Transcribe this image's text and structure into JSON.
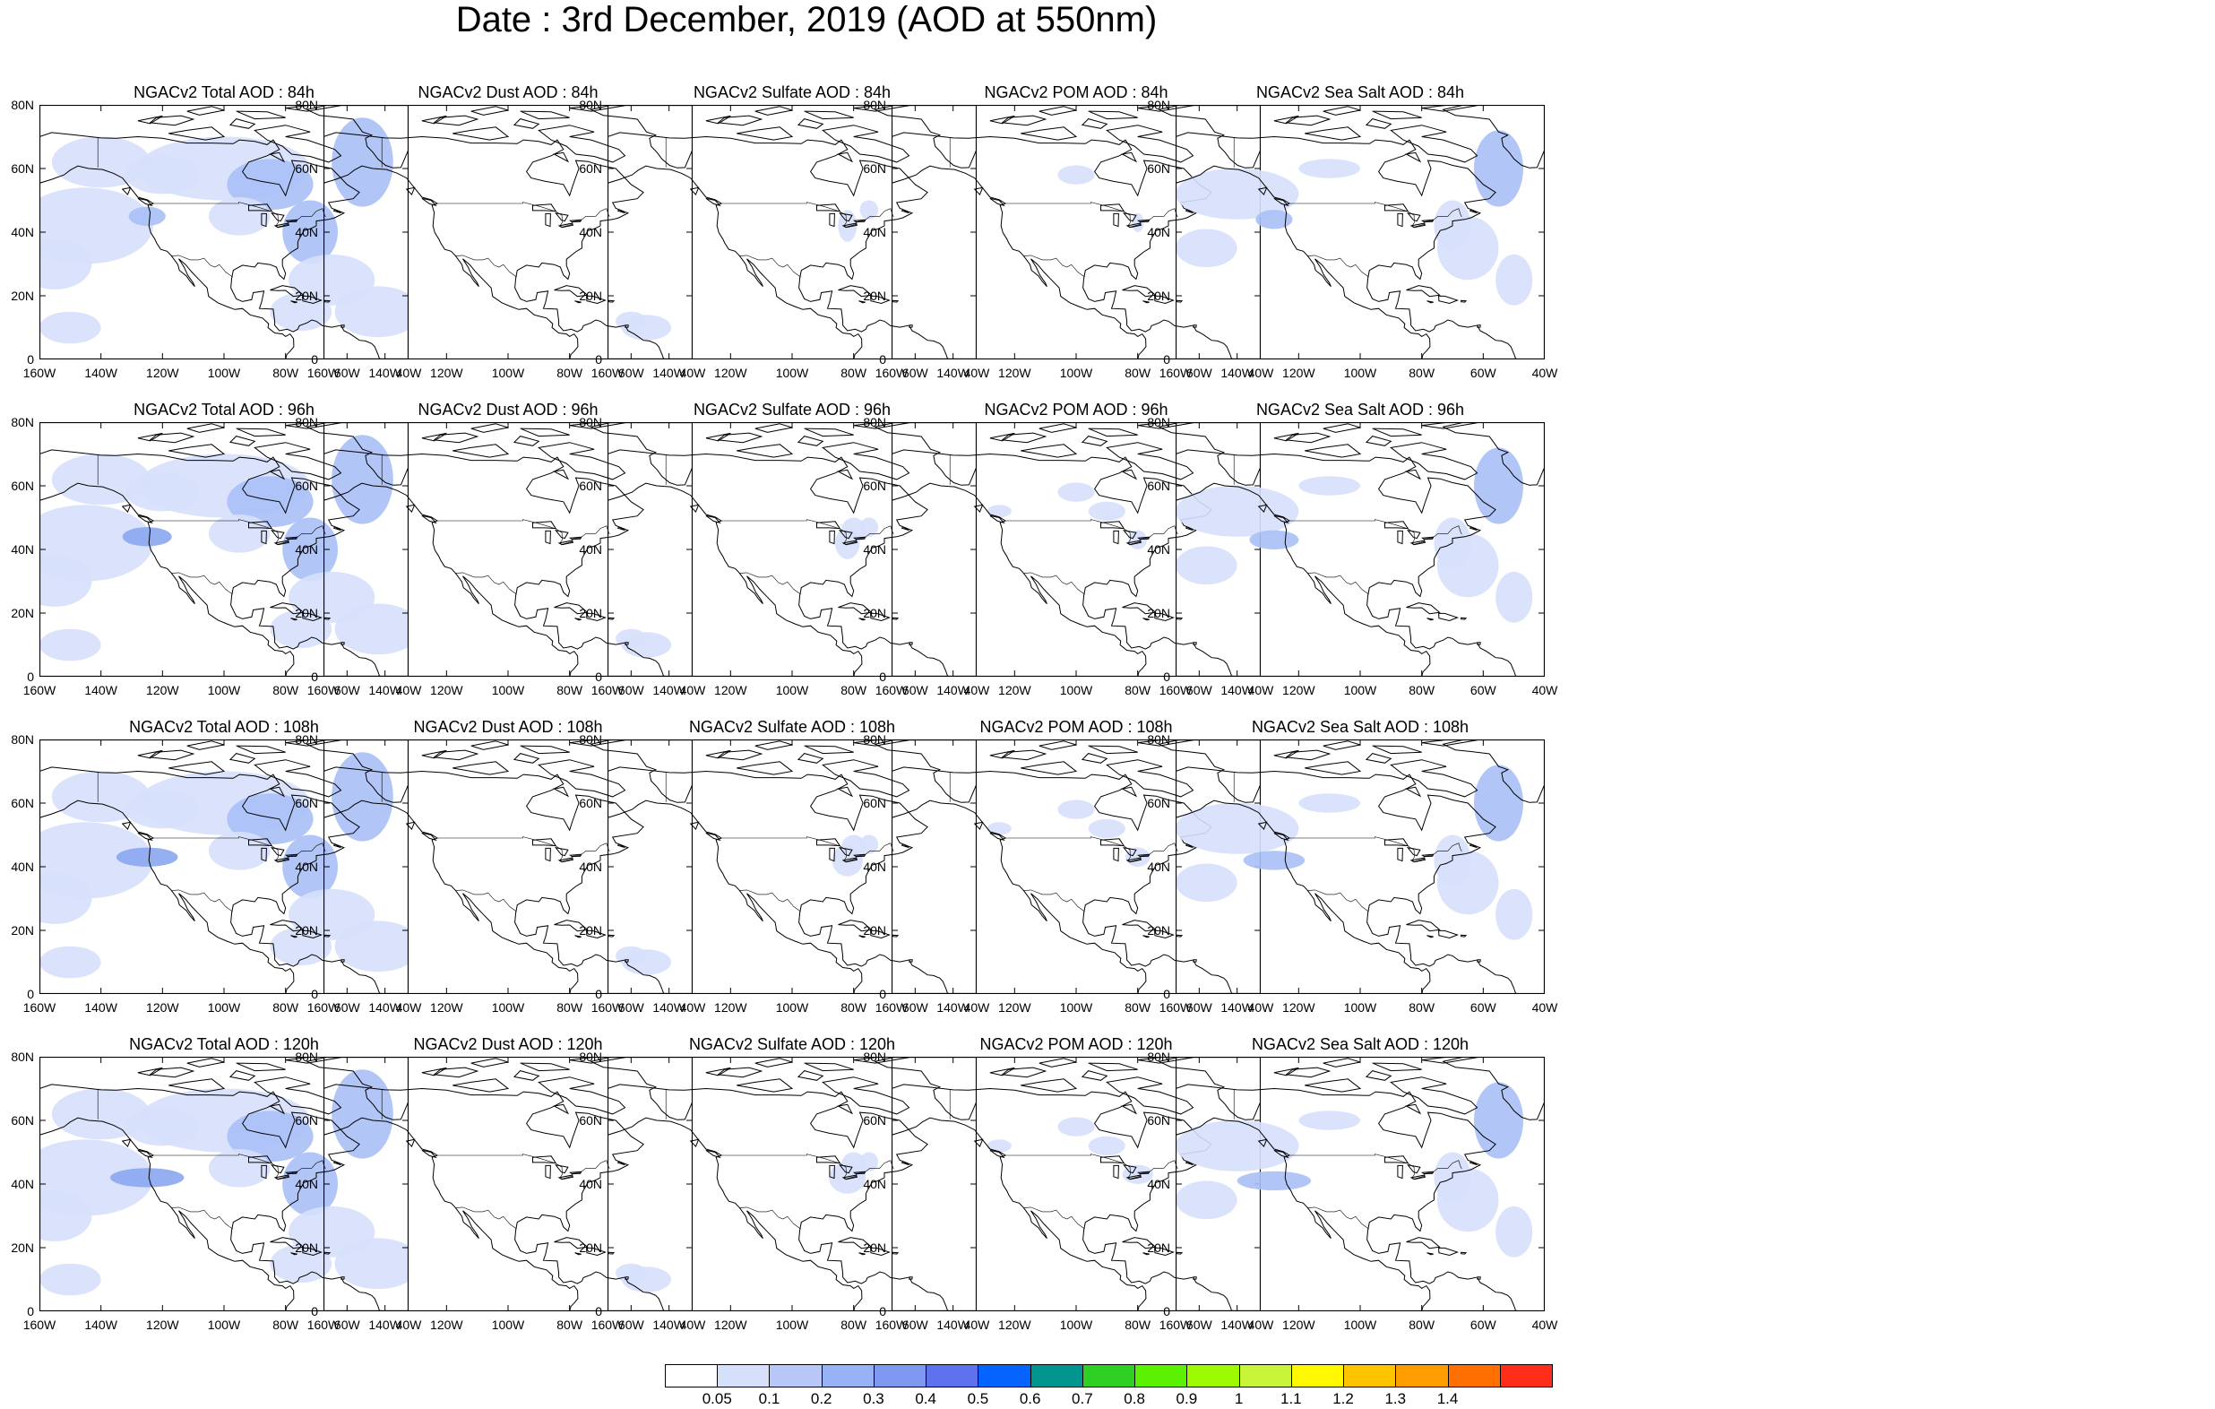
{
  "title": "Date : 3rd December, 2019 (AOD at 550nm)",
  "lat_ticks": [
    "80N",
    "60N",
    "40N",
    "20N",
    "0"
  ],
  "lon_ticks": [
    "160W",
    "140W",
    "120W",
    "100W",
    "80W",
    "60W",
    "40W"
  ],
  "colors": {
    "land_outline": "#000000",
    "ocean_low": "#d6e0fb",
    "mid": "#a9bff6",
    "high": "#8aa6f0"
  },
  "panels": [
    [
      {
        "title": "NGACv2 Total AOD : 84h",
        "species": "total"
      },
      {
        "title": "NGACv2 Dust AOD : 84h",
        "species": "dust"
      },
      {
        "title": "NGACv2 Sulfate AOD : 84h",
        "species": "sulfate"
      },
      {
        "title": "NGACv2 POM AOD : 84h",
        "species": "pom"
      },
      {
        "title": "NGACv2 Sea Salt AOD : 84h",
        "species": "seasalt"
      }
    ],
    [
      {
        "title": "NGACv2 Total AOD : 96h",
        "species": "total"
      },
      {
        "title": "NGACv2 Dust AOD : 96h",
        "species": "dust"
      },
      {
        "title": "NGACv2 Sulfate AOD : 96h",
        "species": "sulfate"
      },
      {
        "title": "NGACv2 POM AOD : 96h",
        "species": "pom"
      },
      {
        "title": "NGACv2 Sea Salt AOD : 96h",
        "species": "seasalt"
      }
    ],
    [
      {
        "title": "NGACv2 Total AOD : 108h",
        "species": "total"
      },
      {
        "title": "NGACv2 Dust AOD : 108h",
        "species": "dust"
      },
      {
        "title": "NGACv2 Sulfate AOD : 108h",
        "species": "sulfate"
      },
      {
        "title": "NGACv2 POM AOD : 108h",
        "species": "pom"
      },
      {
        "title": "NGACv2 Sea Salt AOD : 108h",
        "species": "seasalt"
      }
    ],
    [
      {
        "title": "NGACv2 Total AOD : 120h",
        "species": "total"
      },
      {
        "title": "NGACv2 Dust AOD : 120h",
        "species": "dust"
      },
      {
        "title": "NGACv2 Sulfate AOD : 120h",
        "species": "sulfate"
      },
      {
        "title": "NGACv2 POM AOD : 120h",
        "species": "pom"
      },
      {
        "title": "NGACv2 Sea Salt  AOD : 120h",
        "species": "seasalt"
      }
    ]
  ],
  "colorbar": {
    "labels": [
      "0.05",
      "0.1",
      "0.2",
      "0.3",
      "0.4",
      "0.5",
      "0.6",
      "0.7",
      "0.8",
      "0.9",
      "1",
      "1.1",
      "1.2",
      "1.3",
      "1.4"
    ],
    "colors": [
      "#ffffff",
      "#d6e0fb",
      "#b7c8f8",
      "#97b2f5",
      "#7f98f2",
      "#5f72ee",
      "#0564ff",
      "#00968f",
      "#2fcf26",
      "#5bf100",
      "#9dfa00",
      "#c8f43a",
      "#fff800",
      "#ffc400",
      "#ff9c00",
      "#ff7000",
      "#ff2e1a"
    ]
  }
}
